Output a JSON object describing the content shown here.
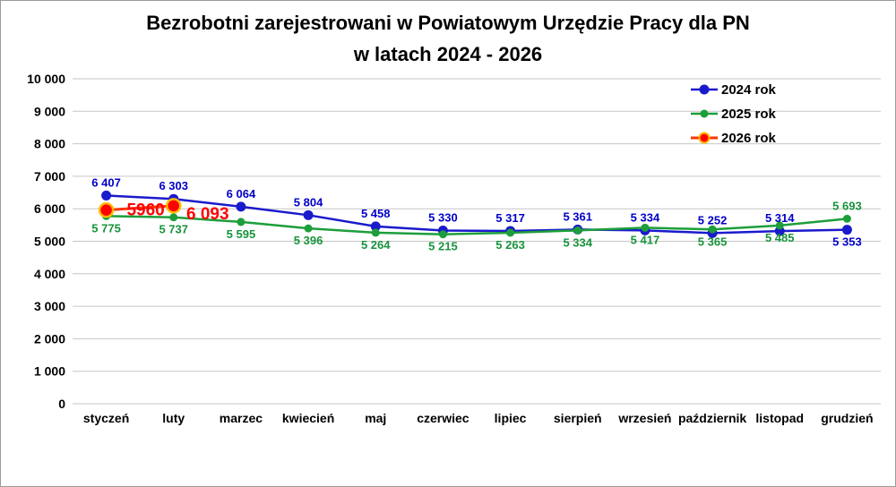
{
  "window": {
    "background": "#ffffff",
    "border_color": "#9a9a9a"
  },
  "chart_data": {
    "type": "line",
    "title_line1": "Bezrobotni zarejestrowani w Powiatowym Urzędzie Pracy dla PN",
    "title_line2": "w latach 2024 - 2026",
    "categories": [
      "styczeń",
      "luty",
      "marzec",
      "kwiecień",
      "maj",
      "czerwiec",
      "lipiec",
      "sierpień",
      "wrzesień",
      "październik",
      "listopad",
      "grudzień"
    ],
    "ylim": [
      0,
      10000
    ],
    "ytick_step": 1000,
    "ytick_labels": [
      "0",
      "1 000",
      "2 000",
      "3 000",
      "4 000",
      "5 000",
      "6 000",
      "7 000",
      "8 000",
      "9 000",
      "10 000"
    ],
    "grid": true,
    "grid_color": "#c6c6c6",
    "legend_position": "top-right",
    "series": [
      {
        "name": "2024 rok",
        "color": "#1a1acd",
        "label_color": "#0000c8",
        "line_width": 2.5,
        "marker_radius": 5.5,
        "label_font_size": 13,
        "values": [
          6407,
          6303,
          6064,
          5804,
          5458,
          5330,
          5317,
          5361,
          5334,
          5252,
          5314,
          5353
        ],
        "labels": [
          "6 407",
          "6 303",
          "6 064",
          "5 804",
          "5 458",
          "5 330",
          "5 317",
          "5 361",
          "5 334",
          "5 252",
          "5 314",
          "5 353"
        ],
        "label_side": [
          "above",
          "above",
          "above",
          "above",
          "above",
          "above",
          "above",
          "above",
          "above",
          "above",
          "above",
          "below"
        ]
      },
      {
        "name": "2025 rok",
        "color": "#1d9e3a",
        "label_color": "#17933b",
        "line_width": 2.5,
        "marker_radius": 4.5,
        "label_font_size": 13,
        "values": [
          5775,
          5737,
          5595,
          5396,
          5264,
          5215,
          5263,
          5334,
          5417,
          5365,
          5485,
          5693
        ],
        "labels": [
          "5 775",
          "5 737",
          "5 595",
          "5 396",
          "5 264",
          "5 215",
          "5 263",
          "5 334",
          "5 417",
          "5 365",
          "5 485",
          "5 693"
        ],
        "label_side": [
          "below",
          "below",
          "below",
          "below",
          "below",
          "below",
          "below",
          "below",
          "below",
          "below",
          "below",
          "above"
        ]
      },
      {
        "name": "2026 rok",
        "color": "#ff3300",
        "label_color": "#ff0000",
        "line_width": 3,
        "marker_radius": 7.5,
        "marker_fill": "#ff0000",
        "marker_ring": "#ffb900",
        "label_font_size": 19,
        "values": [
          5960,
          6093
        ],
        "labels": [
          "5960",
          "6 093"
        ],
        "label_side": [
          "offset",
          "offset"
        ],
        "label_offsets": [
          [
            44,
            6
          ],
          [
            38,
            15
          ]
        ]
      }
    ]
  }
}
